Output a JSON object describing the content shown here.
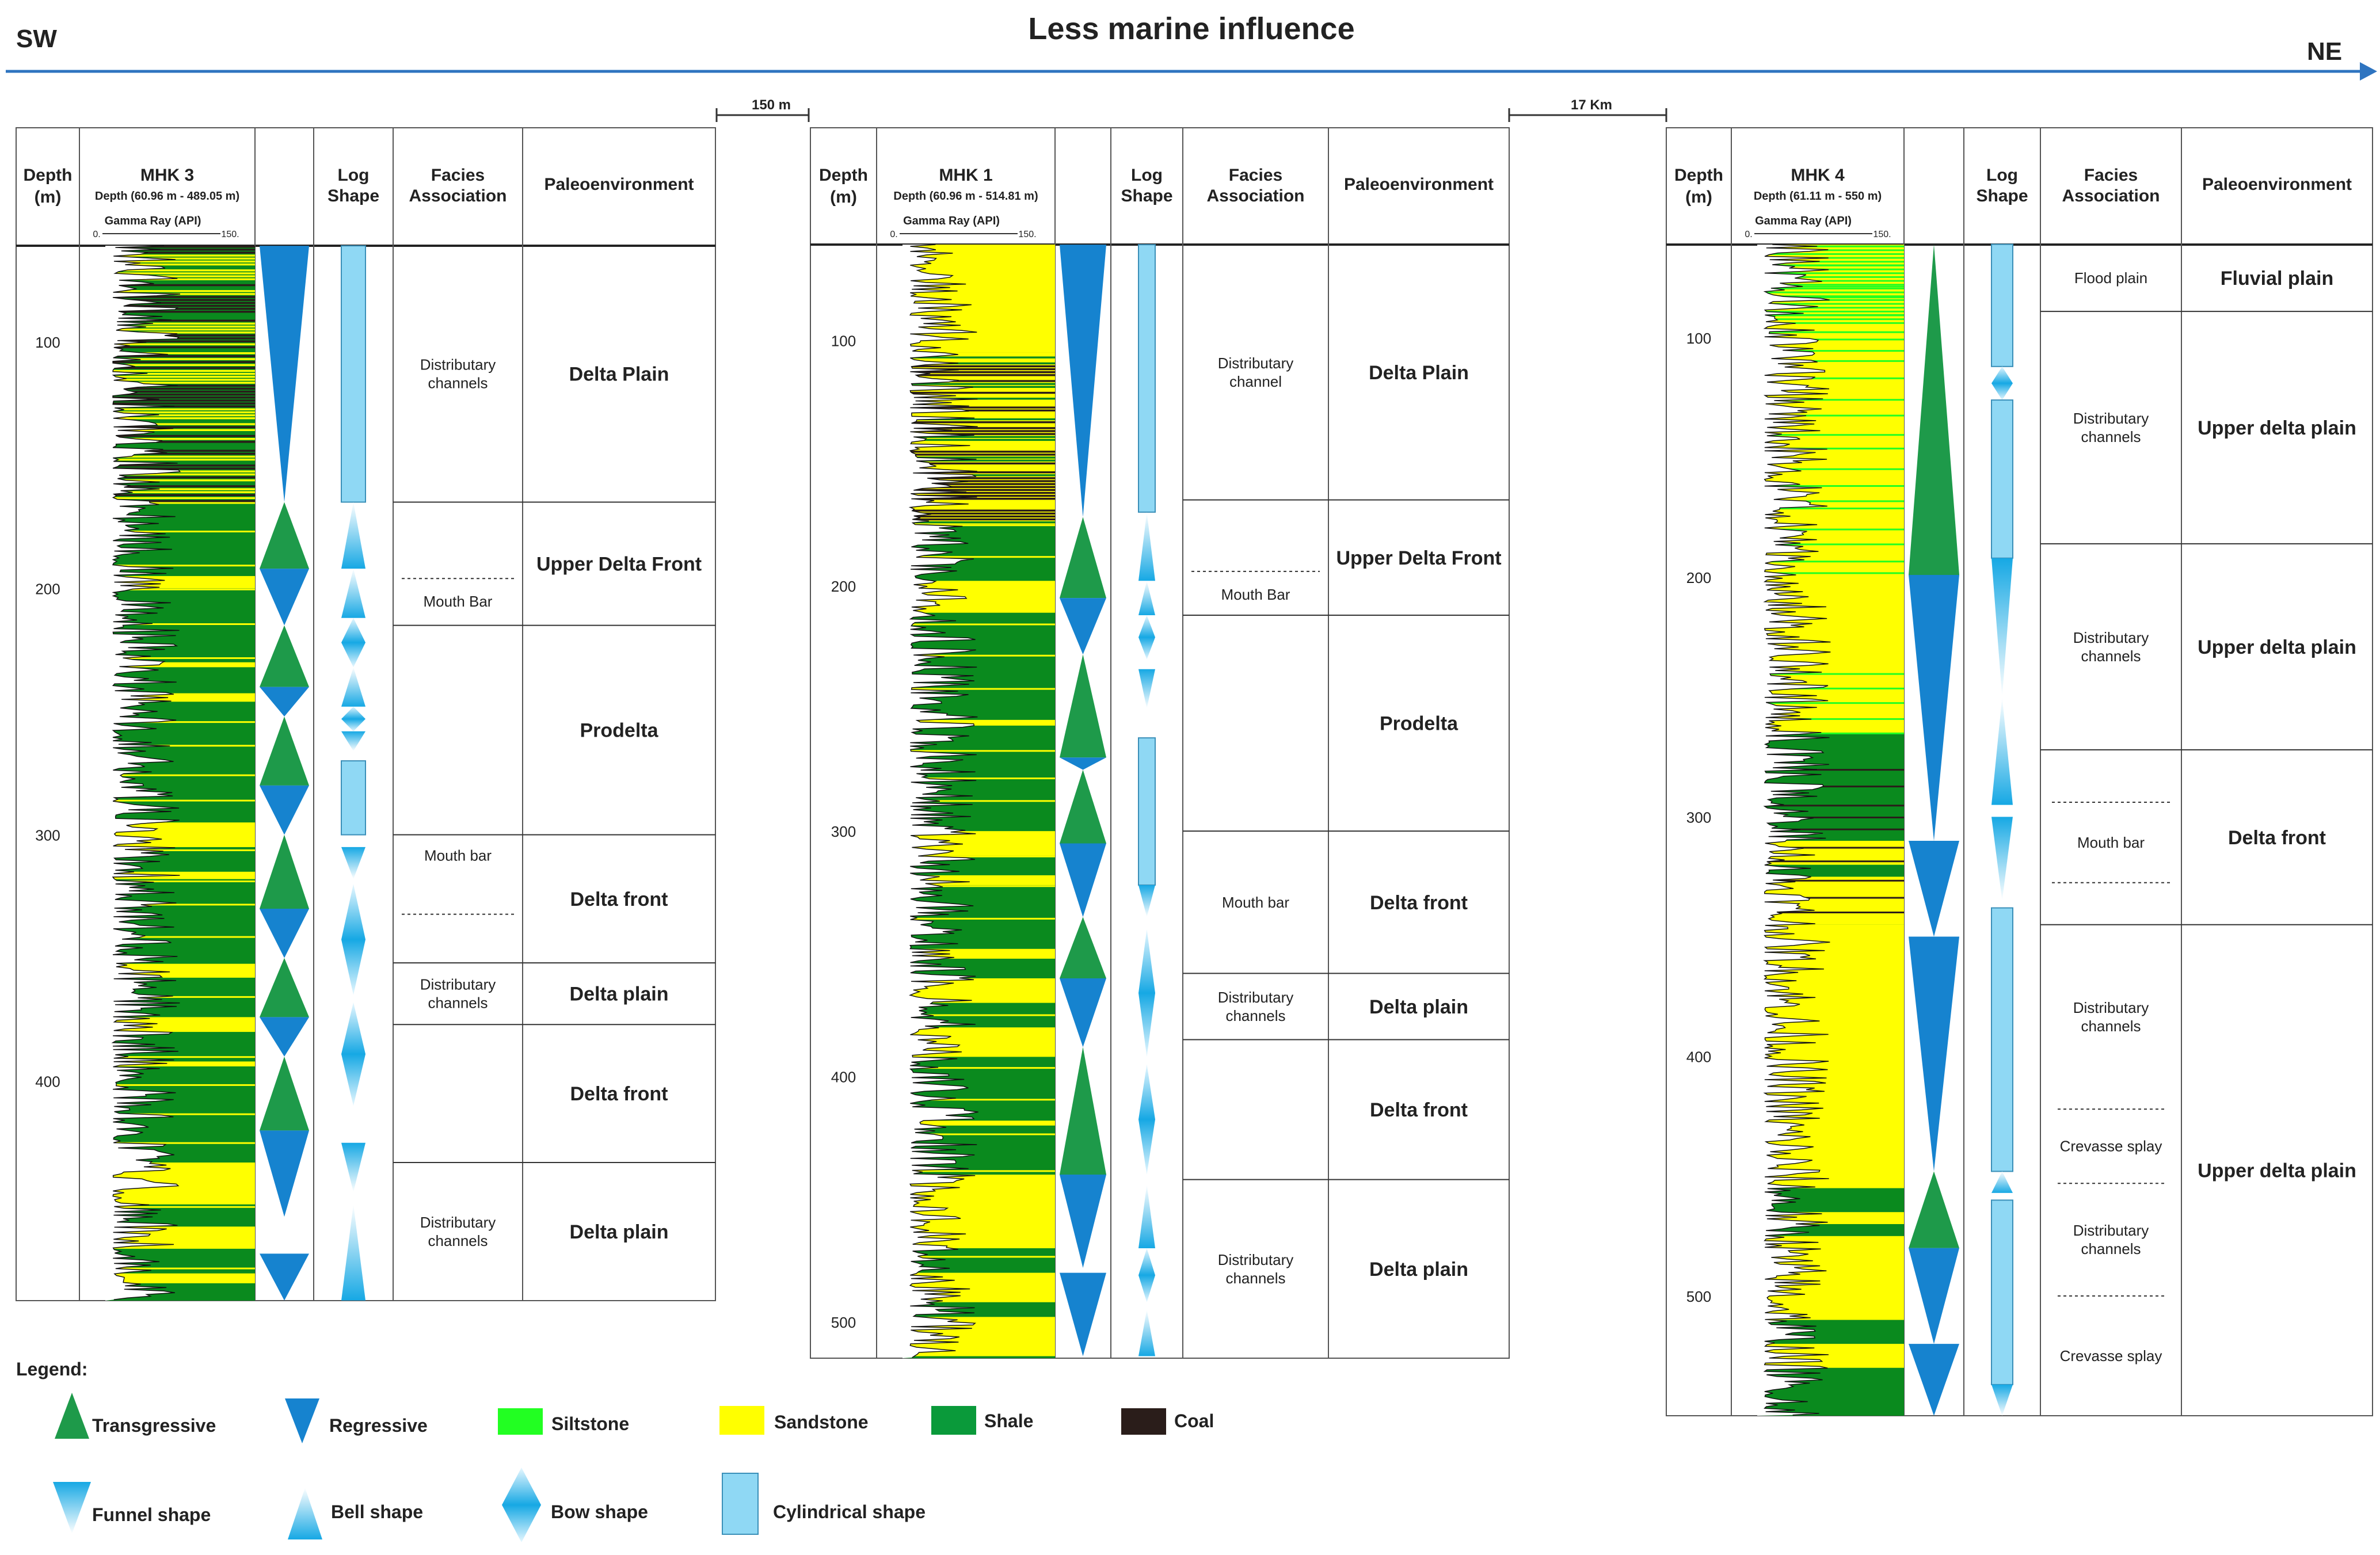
{
  "title": "Less marine influence",
  "direction": {
    "left": "SW",
    "right": "NE"
  },
  "spacings": [
    "150 m",
    "17 Km"
  ],
  "headers": {
    "depth": "Depth",
    "depth_unit": "(m)",
    "log": "Log",
    "shape": "Shape",
    "facies": "Facies",
    "association": "Association",
    "paleo": "Paleoenvironment",
    "gamma": "Gamma Ray (API)",
    "scale_min": "0.",
    "scale_max": "150."
  },
  "colors": {
    "sandstone": "#ffff00",
    "shale": "#0a8a1e",
    "siltstone": "#22ff22",
    "coal": "#2a1d1a",
    "transgressive": "#1e9a4a",
    "regressive": "#1683cf",
    "cyl": "#8fd8f4",
    "axis": "#2e74c0"
  },
  "wells": [
    {
      "name": "MHK 3",
      "range": "Depth (60.96 m - 489.05 m)",
      "depth_min": 60.96,
      "depth_max": 489.05,
      "ticks": [
        "100",
        "200",
        "300",
        "400"
      ],
      "facies": [
        {
          "from": 60.96,
          "to": 165,
          "labels": [
            "Distributary",
            "channels"
          ],
          "env": "Delta Plain"
        },
        {
          "from": 165,
          "to": 215,
          "labels": [
            "Mouth Bar"
          ],
          "env": "Upper Delta Front",
          "dotted": true
        },
        {
          "from": 215,
          "to": 300,
          "labels": [],
          "env": "Prodelta"
        },
        {
          "from": 300,
          "to": 352,
          "labels": [
            "Mouth bar"
          ],
          "env": "Delta front",
          "dotted": true
        },
        {
          "from": 352,
          "to": 377,
          "labels": [
            "Distributary",
            "channels"
          ],
          "env": "Delta plain"
        },
        {
          "from": 377,
          "to": 433,
          "labels": [],
          "env": "Delta front"
        },
        {
          "from": 433,
          "to": 489.05,
          "labels": [
            "Distributary",
            "channels"
          ],
          "env": "Delta plain"
        }
      ]
    },
    {
      "name": "MHK 1",
      "range": "Depth (60.96 m - 514.81 m)",
      "depth_min": 60.96,
      "depth_max": 514.81,
      "ticks": [
        "100",
        "200",
        "300",
        "400",
        "500"
      ],
      "facies": [
        {
          "from": 60.96,
          "to": 165,
          "labels": [
            "Distributary",
            "channel"
          ],
          "env": "Delta Plain"
        },
        {
          "from": 165,
          "to": 212,
          "labels": [
            "Mouth Bar"
          ],
          "env": "Upper Delta Front",
          "dotted": true
        },
        {
          "from": 212,
          "to": 300,
          "labels": [],
          "env": "Prodelta"
        },
        {
          "from": 300,
          "to": 358,
          "labels": [
            "Mouth bar"
          ],
          "env": "Delta front"
        },
        {
          "from": 358,
          "to": 385,
          "labels": [
            "Distributary",
            "channels"
          ],
          "env": "Delta plain"
        },
        {
          "from": 385,
          "to": 442,
          "labels": [],
          "env": "Delta front"
        },
        {
          "from": 442,
          "to": 514.81,
          "labels": [
            "Distributary",
            "channels"
          ],
          "env": "Delta plain"
        }
      ]
    },
    {
      "name": "MHK 4",
      "range": "Depth (61.11 m - 550 m)",
      "depth_min": 61.11,
      "depth_max": 550,
      "ticks": [
        "100",
        "200",
        "300",
        "400",
        "500"
      ],
      "facies": [
        {
          "from": 61.11,
          "to": 89,
          "labels": [
            "Flood plain"
          ],
          "env": "Fluvial plain"
        },
        {
          "from": 89,
          "to": 186,
          "labels": [
            "Distributary",
            "channels"
          ],
          "env": "Upper delta plain"
        },
        {
          "from": 186,
          "to": 272,
          "labels": [
            "Distributary",
            "channels"
          ],
          "env": "Upper delta plain"
        },
        {
          "from": 272,
          "to": 345,
          "labels": [
            "Mouth bar"
          ],
          "env": "Delta front",
          "dotted2": true
        },
        {
          "from": 345,
          "to": 550,
          "labels": [],
          "env": "Upper delta plain",
          "subs": [
            {
              "from": 345,
              "to": 422,
              "labels": [
                "Distributary",
                "channels"
              ]
            },
            {
              "from": 422,
              "to": 453,
              "labels": [
                "Crevasse splay"
              ]
            },
            {
              "from": 453,
              "to": 500,
              "labels": [
                "Distributary",
                "channels"
              ]
            },
            {
              "from": 500,
              "to": 550,
              "labels": [
                "Crevasse splay"
              ]
            }
          ]
        }
      ]
    }
  ],
  "legend": {
    "title": "Legend:",
    "items": [
      "Transgressive",
      "Regressive",
      "Siltstone",
      "Sandstone",
      "Shale",
      "Coal",
      "Funnel shape",
      "Bell shape",
      "Bow shape",
      "Cylindrical shape"
    ]
  }
}
